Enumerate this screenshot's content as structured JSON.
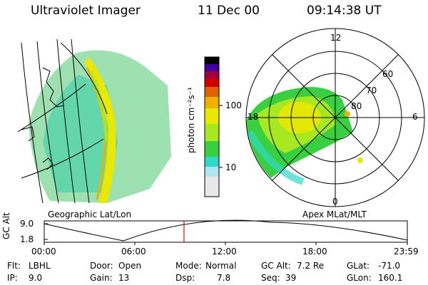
{
  "header": {
    "instrument": "Ultraviolet Imager",
    "date": "11 Dec 00",
    "time": "09:14:38 UT"
  },
  "colors": {
    "accent_red": "#ff0000",
    "scale": [
      "#e8e8e8",
      "#b0e6f0",
      "#30d8c8",
      "#28c878",
      "#38d040",
      "#a8e820",
      "#e8e800",
      "#f0b000",
      "#e06000",
      "#d00000",
      "#a00040",
      "#4000a0",
      "#000000"
    ]
  },
  "colorbar": {
    "unit_label": "photon cm⁻²s⁻¹",
    "tick_100": "100",
    "tick_10": "10"
  },
  "left_panel": {
    "caption": "Geographic Lat/Lon"
  },
  "right_panel": {
    "caption": "Apex MLat/MLT",
    "mlt_12": "12",
    "mlt_18": "18",
    "mlt_6": "6",
    "mlt_0": "0",
    "mlat_60": "60",
    "mlat_70": "70",
    "mlat_80": "80"
  },
  "timeline": {
    "axis_label": "GC Alt",
    "y_top": "9.0",
    "y_bottom": "1.8",
    "ticks": [
      "00:00",
      "06:00",
      "12:00",
      "18:00",
      "23:59"
    ],
    "cursor_time_fraction": 0.385
  },
  "status": {
    "filter_label": "Flt:",
    "filter_value": "LBHL",
    "ip_label": "IP:",
    "ip_value": "9.0",
    "door_label": "Door:",
    "door_value": "Open",
    "gain_label": "Gain:",
    "gain_value": "13",
    "mode_label": "Mode:",
    "mode_value": "Normal",
    "dsp_label": "Dsp:",
    "dsp_value": "7.8",
    "gcalt_label": "GC Alt:",
    "gcalt_value": "7.2 Re",
    "seq_label": "Seq:",
    "seq_value": "39",
    "glat_label": "GLat:",
    "glat_value": "-71.0",
    "glon_label": "GLon:",
    "glon_value": "160.1"
  }
}
